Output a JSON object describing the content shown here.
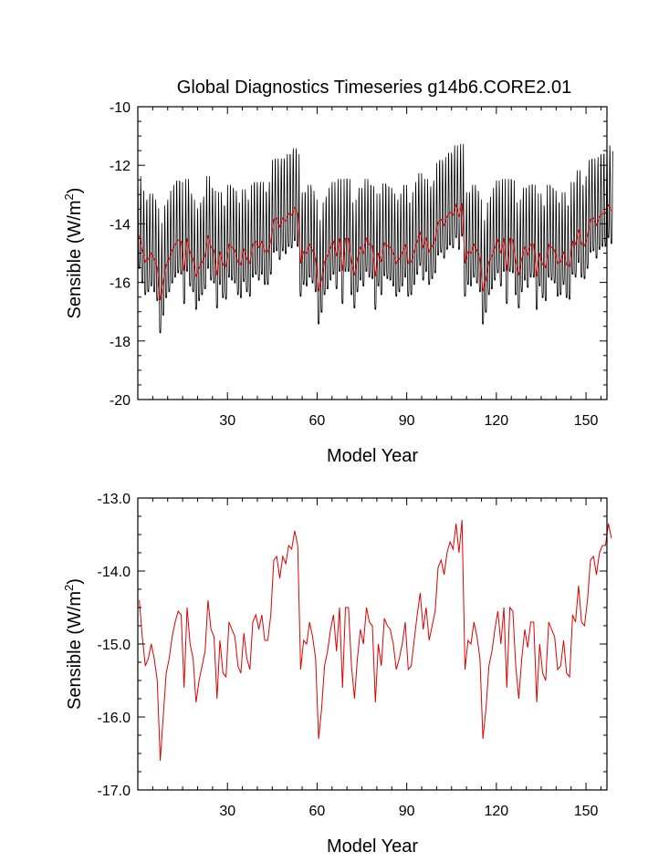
{
  "figure_title": "Global Diagnostics Timeseries g14b6.CORE2.01",
  "colors": {
    "monthly": "#000000",
    "annual": "#e00000",
    "axes": "#000000"
  },
  "chart_data": [
    {
      "type": "line",
      "title": "Global Diagnostics Timeseries g14b6.CORE2.01",
      "xlabel": "Model Year",
      "ylabel_main": "Sensible (W/m",
      "ylabel_sup": "2",
      "ylabel_end": ")",
      "xlim": [
        0,
        157
      ],
      "ylim": [
        -20,
        -10
      ],
      "xticks": [
        30,
        60,
        90,
        120,
        150
      ],
      "xtick_labels": [
        "30",
        "60",
        "90",
        "120",
        "150"
      ],
      "yticks": [
        -20,
        -18,
        -16,
        -14,
        -12,
        -10
      ],
      "ytick_labels": [
        "-20",
        "-18",
        "-16",
        "-14",
        "-12",
        "-10"
      ],
      "grid": false,
      "series": [
        {
          "role": "monthly",
          "color": "#000000",
          "generated_from": "annual",
          "samples_per_year": 12,
          "seasonal_amplitude": 1.6,
          "x_start": 0,
          "values": []
        },
        {
          "role": "annual",
          "color": "#e00000",
          "ref": "annual"
        }
      ]
    },
    {
      "type": "line",
      "xlabel": "Model Year",
      "ylabel_main": "Sensible (W/m",
      "ylabel_sup": "2",
      "ylabel_end": ")",
      "xlim": [
        0,
        157
      ],
      "ylim": [
        -17,
        -13
      ],
      "xticks": [
        30,
        60,
        90,
        120,
        150
      ],
      "xtick_labels": [
        "30",
        "60",
        "90",
        "120",
        "150"
      ],
      "yticks": [
        -17,
        -16,
        -15,
        -14,
        -13
      ],
      "ytick_labels": [
        "-17.0",
        "-16.0",
        "-15.0",
        "-14.0",
        "-13.0"
      ],
      "grid": false,
      "series": [
        {
          "role": "annual",
          "color": "#e00000",
          "ref": "annual"
        }
      ]
    }
  ],
  "annual": {
    "x_start": 0.5,
    "x_step": 1,
    "values": [
      -14.4,
      -14.9,
      -15.3,
      -15.2,
      -15.0,
      -15.2,
      -15.5,
      -16.6,
      -16.0,
      -15.4,
      -15.2,
      -14.9,
      -14.7,
      -14.55,
      -14.6,
      -15.6,
      -14.5,
      -15.0,
      -15.2,
      -15.8,
      -15.5,
      -15.3,
      -15.1,
      -14.4,
      -14.8,
      -14.9,
      -15.75,
      -14.95,
      -15.4,
      -15.45,
      -14.7,
      -14.8,
      -14.9,
      -15.3,
      -15.4,
      -14.85,
      -15.2,
      -15.35,
      -14.7,
      -14.6,
      -14.8,
      -14.6,
      -14.95,
      -14.95,
      -14.6,
      -13.85,
      -13.8,
      -14.1,
      -13.8,
      -13.9,
      -13.65,
      -13.7,
      -13.45,
      -13.65,
      -15.35,
      -14.95,
      -15.0,
      -14.7,
      -14.9,
      -15.2,
      -16.3,
      -15.9,
      -15.3,
      -15.1,
      -14.8,
      -14.6,
      -15.1,
      -14.5,
      -15.6,
      -14.5,
      -14.5,
      -15.3,
      -15.75,
      -15.2,
      -14.8,
      -15.0,
      -14.5,
      -14.7,
      -14.75,
      -15.8,
      -15.0,
      -15.3,
      -14.65,
      -14.75,
      -14.8,
      -15.0,
      -15.35,
      -15.2,
      -15.0,
      -14.7,
      -15.35,
      -15.3,
      -14.95,
      -14.6,
      -14.3,
      -14.8,
      -14.5,
      -14.95,
      -14.75,
      -14.55,
      -13.95,
      -13.85,
      -14.05,
      -13.75,
      -13.6,
      -13.7,
      -13.35,
      -13.75,
      -13.3,
      -15.35,
      -14.95,
      -15.0,
      -14.7,
      -14.9,
      -15.2,
      -16.3,
      -15.9,
      -15.3,
      -15.1,
      -14.8,
      -14.55,
      -15.0,
      -14.5,
      -15.6,
      -14.5,
      -14.55,
      -15.3,
      -15.75,
      -15.2,
      -14.8,
      -15.05,
      -14.7,
      -14.7,
      -15.8,
      -15.0,
      -15.4,
      -15.5,
      -14.7,
      -14.8,
      -14.9,
      -15.35,
      -15.3,
      -14.95,
      -15.4,
      -15.45,
      -14.6,
      -14.7,
      -14.2,
      -14.7,
      -14.75,
      -14.4,
      -13.85,
      -13.8,
      -14.05,
      -13.75,
      -13.65,
      -13.65,
      -13.35,
      -13.55
    ]
  }
}
